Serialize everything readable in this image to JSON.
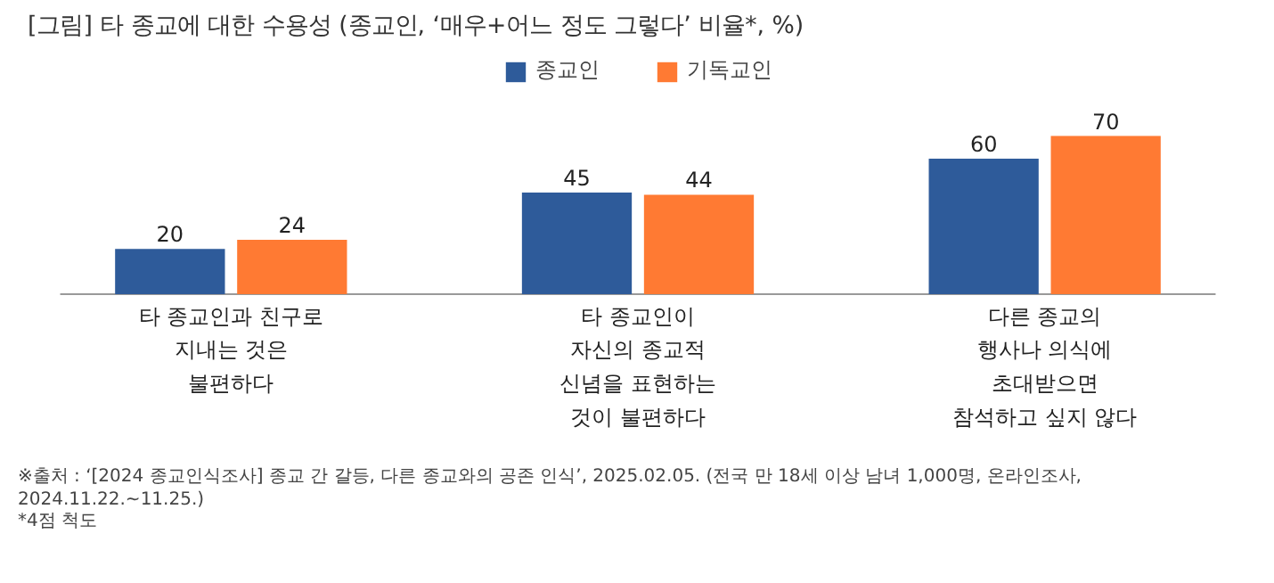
{
  "chart_data": {
    "type": "bar",
    "title": "[그림] 타 종교에 대한 수용성 (종교인, ‘매우+어느 정도 그렇다’ 비율*, %)",
    "categories": [
      "타 종교인과 친구로\n지내는 것은\n불편하다",
      "타 종교인이\n자신의 종교적\n신념을 표현하는\n것이 불편하다",
      "다른 종교의\n행사나 의식에\n초대받으면\n참석하고 싶지 않다"
    ],
    "series": [
      {
        "name": "종교인",
        "color": "#2e5b9a",
        "values": [
          20,
          45,
          60
        ]
      },
      {
        "name": "기독교인",
        "color": "#ff7a33",
        "values": [
          24,
          44,
          70
        ]
      }
    ],
    "data_labels": true,
    "legend": "top",
    "grid": false,
    "annotations": [
      "※출처 : ‘[2024 종교인식조사] 종교 간 갈등, 다른 종교와의 공존 인식’, 2025.02.05. (전국 만 18세 이상 남녀 1,000명, 온라인조사, 2024.11.22.~11.25.)",
      "*4점 척도"
    ]
  }
}
